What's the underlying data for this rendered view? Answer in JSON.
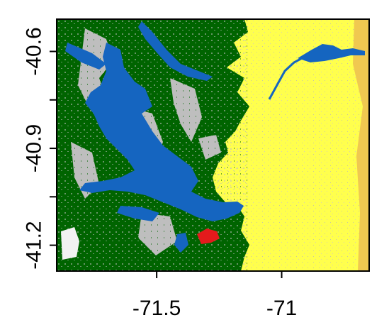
{
  "map": {
    "x_axis": {
      "range": [
        -71.9,
        -70.65
      ],
      "ticks": [
        {
          "value": -71.5,
          "label": "-71.5"
        },
        {
          "value": -71.0,
          "label": "-71"
        }
      ]
    },
    "y_axis": {
      "range": [
        -41.28,
        -40.5
      ],
      "ticks": [
        {
          "value": -40.6,
          "label": "-40.6"
        },
        {
          "value": -40.9,
          "label": "-40.9"
        },
        {
          "value": -41.2,
          "label": "-41.2"
        }
      ]
    },
    "legend": "none",
    "grid": false,
    "land_cover_colors": {
      "forest": "#006400",
      "water": "#1565c0",
      "bare_rock": "#bebebe",
      "steppe_grassland": "#ffff4d",
      "shrubland": "#f0c850",
      "urban": "#e41a1c",
      "snow_ice": "#f2f2f2"
    }
  }
}
